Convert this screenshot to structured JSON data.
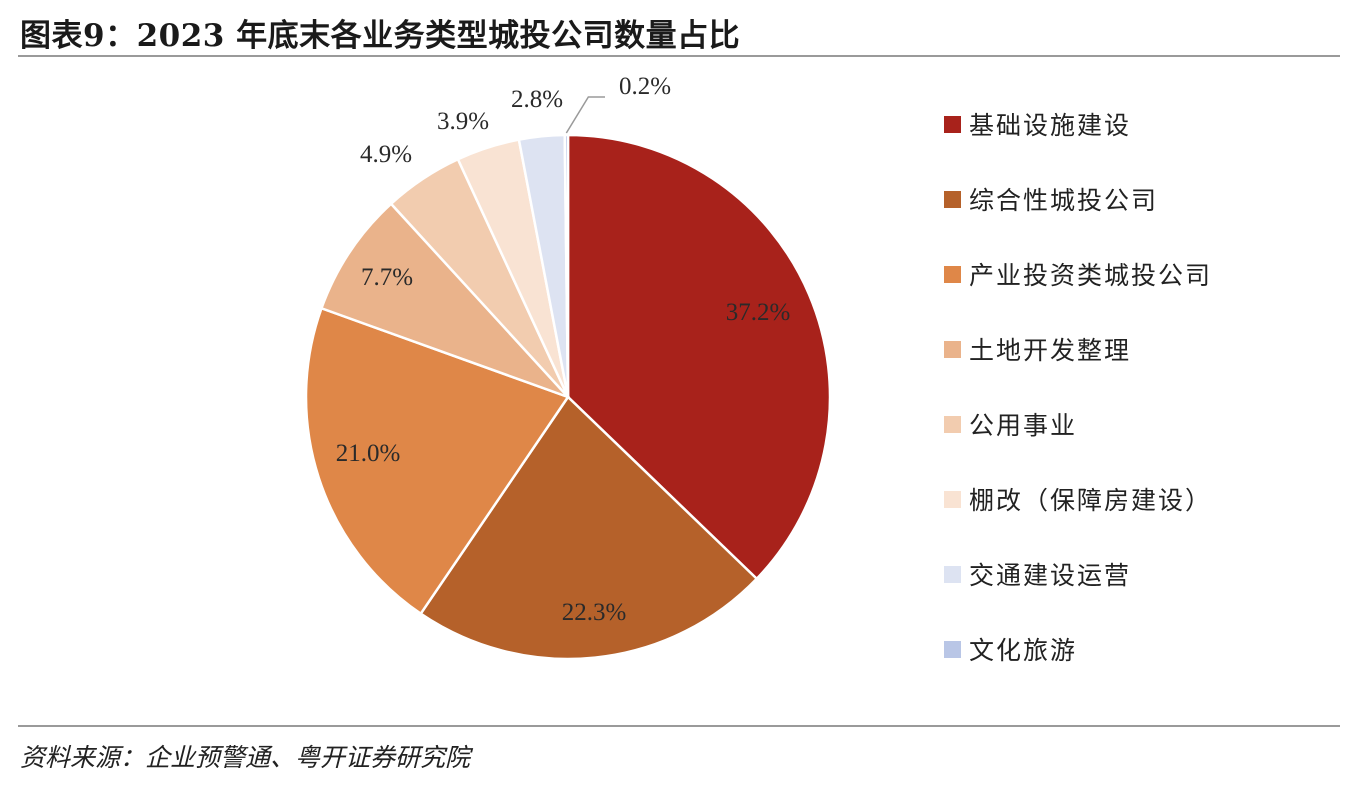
{
  "header": {
    "title": "图表9：2023 年底末各业务类型城投公司数量占比"
  },
  "footer": {
    "source": "资料来源：企业预警通、粤开证券研究院"
  },
  "chart_data": {
    "type": "pie",
    "title": "图表9：2023 年底末各业务类型城投公司数量占比",
    "slices": [
      {
        "name": "基础设施建设",
        "value": 37.2,
        "label": "37.2%",
        "color": "#a8221b"
      },
      {
        "name": "综合性城投公司",
        "value": 22.3,
        "label": "22.3%",
        "color": "#b5612a"
      },
      {
        "name": "产业投资类城投公司",
        "value": 21.0,
        "label": "21.0%",
        "color": "#df8748"
      },
      {
        "name": "土地开发整理",
        "value": 7.7,
        "label": "7.7%",
        "color": "#eab38b"
      },
      {
        "name": "公用事业",
        "value": 4.9,
        "label": "4.9%",
        "color": "#f2ccaf"
      },
      {
        "name": "棚改（保障房建设）",
        "value": 3.9,
        "label": "3.9%",
        "color": "#f9e3d3"
      },
      {
        "name": "交通建设运营",
        "value": 2.8,
        "label": "2.8%",
        "color": "#dde3f2"
      },
      {
        "name": "文化旅游",
        "value": 0.2,
        "label": "0.2%",
        "color": "#b9c6e6"
      }
    ],
    "legend_position": "right"
  }
}
